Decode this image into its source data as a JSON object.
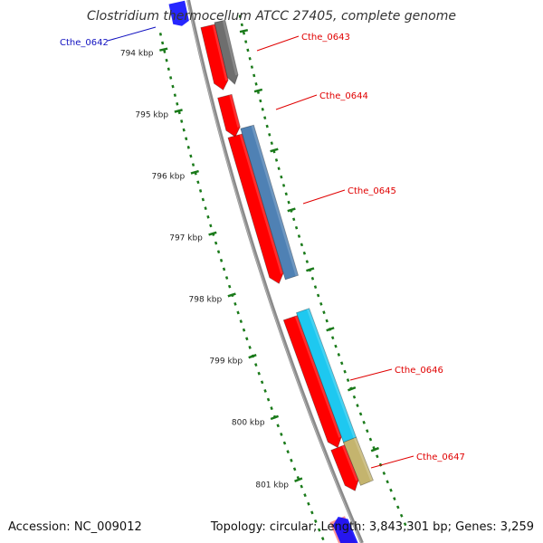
{
  "title": "Clostridium thermocellum ATCC 27405, complete genome",
  "accession": "Accession: NC_009012",
  "summary": "Topology: circular; Length: 3,843,301 bp; Genes: 3,259",
  "colors": {
    "backbone": "#8a8a8a",
    "tick": "#1a7a1a",
    "cds_forward": "#ff0000",
    "gene_label": "#e00000",
    "gene_label_reverse": "#1010c0",
    "feature_blue": "#4f81b4",
    "feature_cyan": "#1ec8f0",
    "feature_gray": "#6e6e6e",
    "feature_khaki": "#c4b46e",
    "arrow_blue": "#0000ff"
  },
  "scale_labels": [
    "794 kbp",
    "795 kbp",
    "796 kbp",
    "797 kbp",
    "798 kbp",
    "799 kbp",
    "800 kbp",
    "801 kbp"
  ],
  "gene_labels": [
    "Cthe_0642",
    "Cthe_0643",
    "Cthe_0644",
    "Cthe_0645",
    "Cthe_0646",
    "Cthe_0647"
  ]
}
